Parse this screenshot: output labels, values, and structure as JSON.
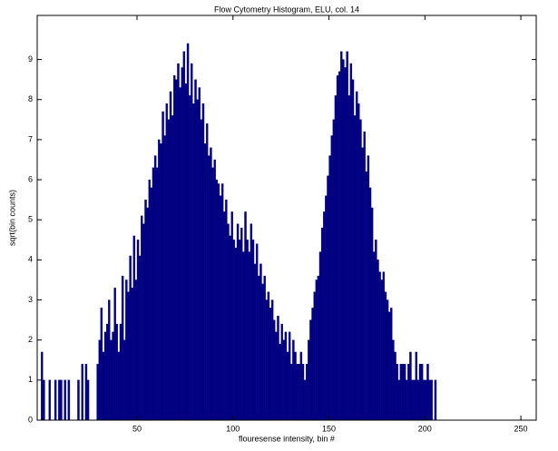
{
  "chart_data": {
    "type": "histogram",
    "title": "Flow Cytometry Histogram, ELU, col. 14",
    "x_label": "flouresense intensity, bin #",
    "y_label": "sqrt(bin counts)",
    "color": "#000080",
    "bins": [
      0,
      1,
      2,
      3,
      4,
      5,
      6,
      7,
      8,
      9,
      10,
      11,
      12,
      13,
      14,
      15,
      16,
      17,
      18,
      19,
      20,
      21,
      22,
      23,
      24,
      25,
      26,
      27,
      28,
      29,
      30,
      31,
      32,
      33,
      34,
      35,
      36,
      37,
      38,
      39,
      40,
      41,
      42,
      43,
      44,
      45,
      46,
      47,
      48,
      49,
      50,
      51,
      52,
      53,
      54,
      55,
      56,
      57,
      58,
      59,
      60,
      61,
      62,
      63,
      64,
      65,
      66,
      67,
      68,
      69,
      70,
      71,
      72,
      73,
      74,
      75,
      76,
      77,
      78,
      79,
      80,
      81,
      82,
      83,
      84,
      85,
      86,
      87,
      88,
      89,
      90,
      91,
      92,
      93,
      94,
      95,
      96,
      97,
      98,
      99,
      100,
      101,
      102,
      103,
      104,
      105,
      106,
      107,
      108,
      109,
      110,
      111,
      112,
      113,
      114,
      115,
      116,
      117,
      118,
      119,
      120,
      121,
      122,
      123,
      124,
      125,
      126,
      127,
      128,
      129,
      130,
      131,
      132,
      133,
      134,
      135,
      136,
      137,
      138,
      139,
      140,
      141,
      142,
      143,
      144,
      145,
      146,
      147,
      148,
      149,
      150,
      151,
      152,
      153,
      154,
      155,
      156,
      157,
      158,
      159,
      160,
      161,
      162,
      163,
      164,
      165,
      166,
      167,
      168,
      169,
      170,
      171,
      172,
      173,
      174,
      175,
      176,
      177,
      178,
      179,
      180,
      181,
      182,
      183,
      184,
      185,
      186,
      187,
      188,
      189,
      190,
      191,
      192,
      193,
      194,
      195,
      196,
      197,
      198,
      199,
      200,
      201,
      202,
      203,
      204,
      205,
      206,
      207,
      208
    ],
    "values": [
      1.7,
      1,
      0,
      0,
      1,
      0,
      0,
      1,
      0,
      1,
      1,
      0,
      1,
      0,
      1,
      0,
      0,
      0,
      0,
      1,
      0,
      1.4,
      0,
      1.4,
      1,
      0,
      0,
      0,
      0,
      1.4,
      2,
      2.8,
      1.7,
      2.2,
      2.4,
      3,
      2,
      2.2,
      3.3,
      2.4,
      1.7,
      2.4,
      3.6,
      2,
      3.5,
      3.2,
      4.1,
      3.3,
      4.6,
      3.5,
      4.5,
      4.1,
      5.1,
      4.9,
      5.5,
      5.3,
      6,
      5.8,
      6.3,
      6.6,
      6.3,
      7,
      6.9,
      7.7,
      7.1,
      7.9,
      7.5,
      8.2,
      7.6,
      8.6,
      8.5,
      8.9,
      8.3,
      8.8,
      9.2,
      8.4,
      9.4,
      8.1,
      8.9,
      7.9,
      8.5,
      8,
      8.3,
      7.5,
      7.9,
      6.9,
      7.4,
      6.6,
      6.8,
      6.3,
      6.5,
      6,
      5.9,
      5.6,
      5.9,
      5.2,
      5.5,
      4.9,
      4.6,
      5.2,
      4.5,
      4.3,
      4.9,
      4.5,
      4.8,
      4.2,
      5.2,
      4.5,
      4.2,
      4.9,
      4.5,
      3.9,
      4.4,
      3.6,
      3.9,
      3.4,
      3.6,
      3,
      3.2,
      2.8,
      3,
      2.5,
      2.2,
      2.6,
      1.9,
      2.4,
      2,
      2.2,
      1.7,
      2.2,
      1.4,
      2,
      1.7,
      1.4,
      1.4,
      1.7,
      1.4,
      1,
      1.4,
      2,
      2.5,
      2.8,
      3.2,
      3.5,
      3.6,
      4.2,
      4.8,
      5.2,
      5.6,
      6.1,
      6.6,
      7.1,
      7.5,
      8.1,
      8.6,
      8.7,
      9.2,
      9,
      8.8,
      9.2,
      8.1,
      8.9,
      8.5,
      7.6,
      8.2,
      7.9,
      7.5,
      6.8,
      7.2,
      6.2,
      6.6,
      5.8,
      5.3,
      4.2,
      4.5,
      4,
      3.7,
      3.5,
      3.7,
      3.2,
      3,
      2.7,
      2.8,
      2,
      1.7,
      1.4,
      1,
      1.4,
      1.4,
      1.4,
      1,
      1.4,
      1.7,
      1,
      1,
      1.7,
      1,
      1.4,
      1.4,
      1,
      1,
      1.4,
      1,
      1,
      0,
      1,
      0,
      0
    ],
    "xlim": [
      -2,
      258
    ],
    "ylim": [
      0,
      10.1
    ],
    "xticks": [
      50,
      100,
      150,
      200,
      250
    ],
    "yticks": [
      0,
      1,
      2,
      3,
      4,
      5,
      6,
      7,
      8,
      9
    ]
  }
}
